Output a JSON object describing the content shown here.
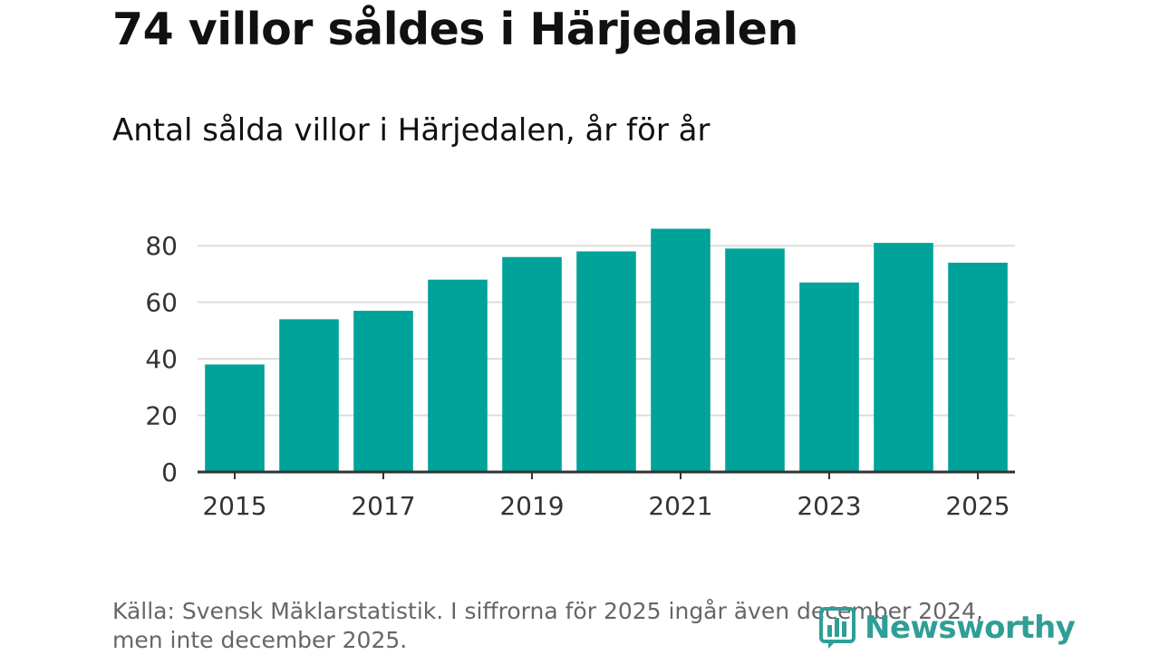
{
  "title": "74 villor såldes i Härjedalen",
  "subtitle": "Antal sålda villor i Härjedalen, år för år",
  "source_text": "Källa: Svensk Mäklarstatistik. I siffrorna för 2025 ingår även december 2024, men inte december 2025.",
  "brand": "Newsworthy",
  "colors": {
    "bar": "#00a399",
    "grid": "#dddddd",
    "axis": "#333333",
    "brand": "#2f9e96"
  },
  "chart_data": {
    "type": "bar",
    "title": "Antal sålda villor i Härjedalen, år för år",
    "xlabel": "",
    "ylabel": "",
    "categories": [
      "2015",
      "2016",
      "2017",
      "2018",
      "2019",
      "2020",
      "2021",
      "2022",
      "2023",
      "2024",
      "2025"
    ],
    "values": [
      38,
      54,
      57,
      68,
      76,
      78,
      86,
      79,
      67,
      81,
      74
    ],
    "ylim": [
      0,
      90
    ],
    "yticks": [
      0,
      20,
      40,
      60,
      80
    ],
    "xtick_labels": [
      "2015",
      "2017",
      "2019",
      "2021",
      "2023",
      "2025"
    ],
    "grid": true
  }
}
